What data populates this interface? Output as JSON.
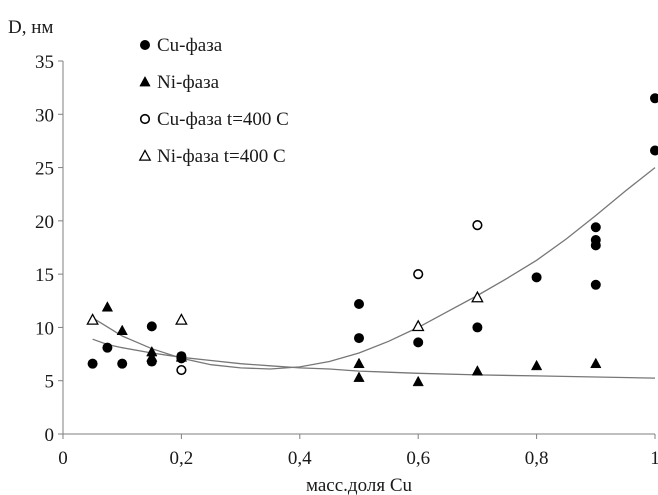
{
  "chart_data": {
    "type": "scatter",
    "ylabel": "D, нм",
    "xlabel": "масс.доля  Cu",
    "xlim": [
      0,
      1
    ],
    "ylim": [
      0,
      35
    ],
    "x_ticks": [
      0,
      0.2,
      0.4,
      0.6,
      0.8,
      1
    ],
    "x_tick_labels": [
      "0",
      "0,2",
      "0,4",
      "0,6",
      "0,8",
      "1"
    ],
    "y_ticks": [
      0,
      5,
      10,
      15,
      20,
      25,
      30,
      35
    ],
    "y_tick_labels": [
      "0",
      "5",
      "10",
      "15",
      "20",
      "25",
      "30",
      "35"
    ],
    "grid": false,
    "legend_position": "top-left",
    "series": [
      {
        "name": "Cu-фаза",
        "marker": "filled-circle",
        "color": "#000000",
        "points": [
          [
            0.05,
            6.6
          ],
          [
            0.075,
            8.1
          ],
          [
            0.1,
            6.6
          ],
          [
            0.15,
            10.1
          ],
          [
            0.15,
            6.8
          ],
          [
            0.2,
            7.3
          ],
          [
            0.2,
            7.1
          ],
          [
            0.5,
            12.2
          ],
          [
            0.5,
            9.0
          ],
          [
            0.6,
            8.6
          ],
          [
            0.7,
            10.0
          ],
          [
            0.8,
            14.7
          ],
          [
            0.9,
            19.4
          ],
          [
            0.9,
            18.2
          ],
          [
            0.9,
            17.7
          ],
          [
            0.9,
            14.0
          ],
          [
            1.0,
            31.5
          ],
          [
            1.0,
            26.6
          ]
        ]
      },
      {
        "name": "Ni-фаза",
        "marker": "filled-triangle",
        "color": "#000000",
        "points": [
          [
            0.075,
            11.9
          ],
          [
            0.1,
            9.7
          ],
          [
            0.15,
            7.7
          ],
          [
            0.15,
            7.2
          ],
          [
            0.2,
            7.2
          ],
          [
            0.5,
            6.6
          ],
          [
            0.5,
            5.3
          ],
          [
            0.6,
            4.9
          ],
          [
            0.7,
            5.9
          ],
          [
            0.8,
            6.4
          ],
          [
            0.9,
            6.6
          ]
        ]
      },
      {
        "name": "Cu-фаза  t=400  C",
        "marker": "open-circle",
        "color": "#000000",
        "points": [
          [
            0.2,
            6.0
          ],
          [
            0.6,
            15.0
          ],
          [
            0.7,
            19.6
          ]
        ]
      },
      {
        "name": "Ni-фаза  t=400  C",
        "marker": "open-triangle",
        "color": "#000000",
        "points": [
          [
            0.05,
            10.7
          ],
          [
            0.2,
            10.7
          ],
          [
            0.6,
            10.1
          ],
          [
            0.7,
            12.8
          ]
        ]
      }
    ],
    "trendlines": [
      {
        "kind": "polynomial",
        "color": "#777777",
        "points": [
          [
            0.05,
            10.9
          ],
          [
            0.1,
            9.2
          ],
          [
            0.15,
            8.0
          ],
          [
            0.2,
            7.1
          ],
          [
            0.25,
            6.5
          ],
          [
            0.3,
            6.2
          ],
          [
            0.35,
            6.1
          ],
          [
            0.4,
            6.3
          ],
          [
            0.45,
            6.8
          ],
          [
            0.5,
            7.6
          ],
          [
            0.55,
            8.7
          ],
          [
            0.6,
            10.0
          ],
          [
            0.65,
            11.5
          ],
          [
            0.7,
            13.0
          ],
          [
            0.75,
            14.6
          ],
          [
            0.8,
            16.3
          ],
          [
            0.85,
            18.3
          ],
          [
            0.9,
            20.5
          ],
          [
            0.95,
            22.8
          ],
          [
            1.0,
            25.0
          ]
        ]
      },
      {
        "kind": "power",
        "color": "#777777",
        "points": [
          [
            0.05,
            8.9
          ],
          [
            0.075,
            8.4
          ],
          [
            0.1,
            8.1
          ],
          [
            0.15,
            7.6
          ],
          [
            0.2,
            7.2
          ],
          [
            0.25,
            6.9
          ],
          [
            0.3,
            6.6
          ],
          [
            0.35,
            6.4
          ],
          [
            0.4,
            6.2
          ],
          [
            0.45,
            6.1
          ],
          [
            0.5,
            5.9
          ],
          [
            0.6,
            5.7
          ],
          [
            0.7,
            5.55
          ],
          [
            0.8,
            5.45
          ],
          [
            0.9,
            5.35
          ],
          [
            1.0,
            5.25
          ]
        ]
      }
    ]
  }
}
